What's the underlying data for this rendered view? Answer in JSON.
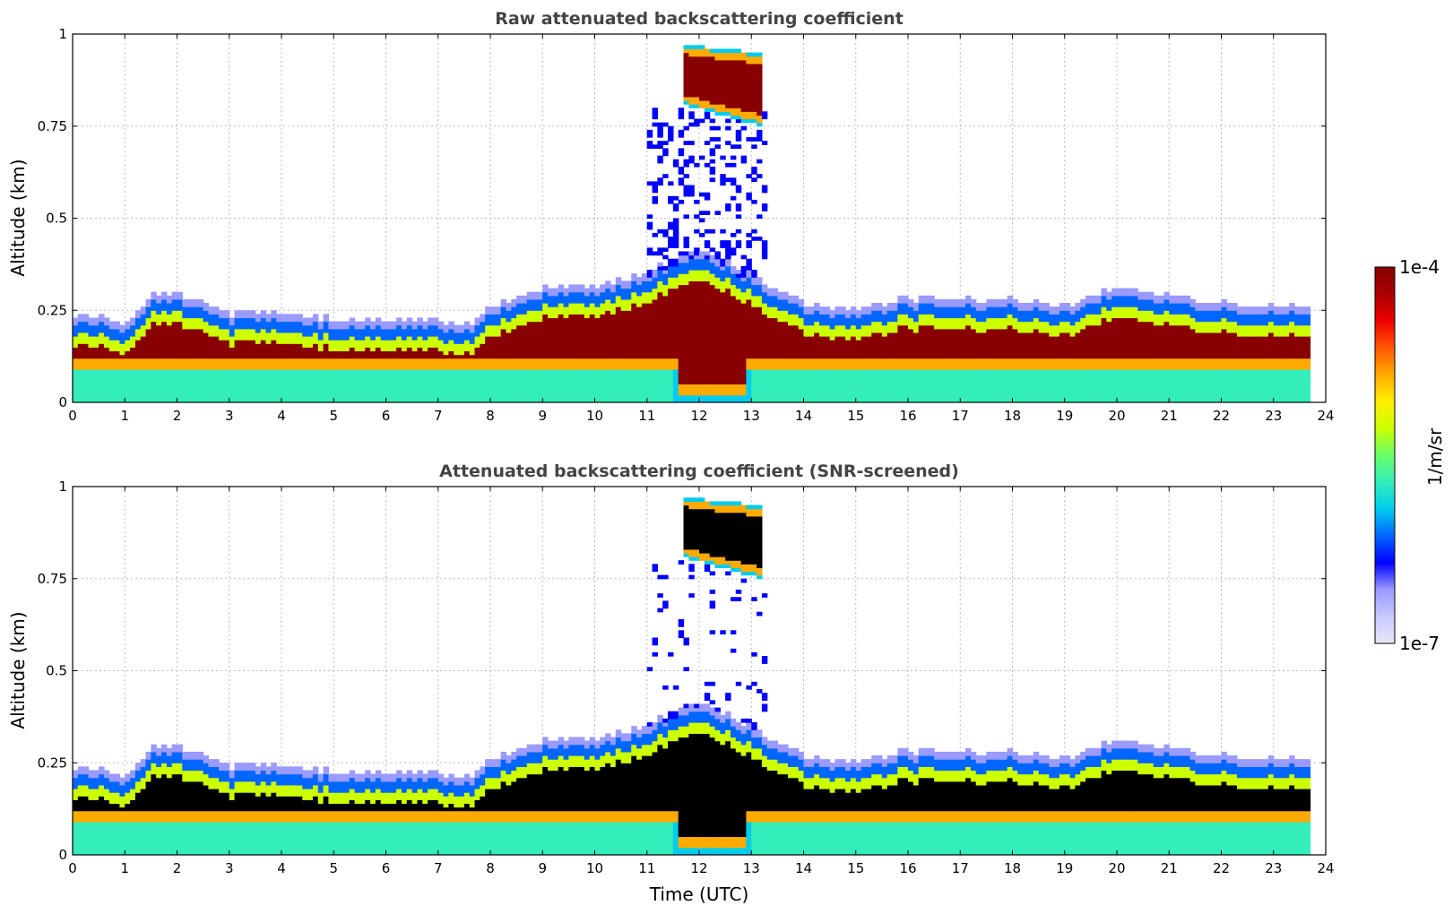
{
  "chart_data": [
    {
      "type": "heatmap",
      "title": "Raw attenuated backscattering coefficient",
      "xlabel": "",
      "ylabel": "Altitude (km)",
      "xlim": [
        0,
        24
      ],
      "ylim": [
        0,
        1
      ],
      "xticks": [
        "0",
        "1",
        "2",
        "3",
        "4",
        "5",
        "6",
        "7",
        "8",
        "9",
        "10",
        "11",
        "12",
        "13",
        "14",
        "15",
        "16",
        "17",
        "18",
        "19",
        "20",
        "21",
        "22",
        "23",
        "24"
      ],
      "yticks": [
        "0",
        "0.25",
        "0.5",
        "0.75",
        "1"
      ],
      "grid": true,
      "variant": "raw",
      "data_end_hour": 23.7,
      "layer_top_km": {
        "hours": [
          0,
          0.5,
          1,
          1.5,
          2,
          3,
          4,
          5,
          6,
          7,
          7.5,
          8,
          9,
          10,
          11,
          12,
          13,
          14,
          15,
          16,
          17,
          18,
          19,
          20,
          21,
          22,
          23,
          23.7
        ],
        "values": [
          0.21,
          0.22,
          0.2,
          0.27,
          0.28,
          0.22,
          0.22,
          0.21,
          0.2,
          0.2,
          0.18,
          0.24,
          0.29,
          0.3,
          0.33,
          0.4,
          0.33,
          0.25,
          0.23,
          0.26,
          0.26,
          0.26,
          0.24,
          0.29,
          0.27,
          0.25,
          0.24,
          0.25
        ]
      },
      "cloud_event": {
        "start_hour": 11.7,
        "end_hour": 13.2,
        "base_km": 0.77,
        "top_km": 0.97
      }
    },
    {
      "type": "heatmap",
      "title": "Attenuated backscattering coefficient (SNR-screened)",
      "xlabel": "Time (UTC)",
      "ylabel": "Altitude (km)",
      "xlim": [
        0,
        24
      ],
      "ylim": [
        0,
        1
      ],
      "xticks": [
        "0",
        "1",
        "2",
        "3",
        "4",
        "5",
        "6",
        "7",
        "8",
        "9",
        "10",
        "11",
        "12",
        "13",
        "14",
        "15",
        "16",
        "17",
        "18",
        "19",
        "20",
        "21",
        "22",
        "23",
        "24"
      ],
      "yticks": [
        "0",
        "0.25",
        "0.5",
        "0.75",
        "1"
      ],
      "grid": true,
      "variant": "screened",
      "data_end_hour": 23.7,
      "cloud_event": {
        "start_hour": 11.7,
        "end_hour": 13.2,
        "base_km": 0.77,
        "top_km": 0.97
      }
    }
  ],
  "colorbar": {
    "max_label": "1e-4",
    "min_label": "1e-7",
    "unit_label": "1/m/sr",
    "colors": [
      "#e8e8f8",
      "#c8c8ff",
      "#9a9aff",
      "#0000ff",
      "#0066ff",
      "#00ccee",
      "#33eebb",
      "#66ff66",
      "#ccff00",
      "#ffee00",
      "#ffaa00",
      "#ff5500",
      "#ee0000",
      "#aa0000",
      "#880000"
    ]
  }
}
